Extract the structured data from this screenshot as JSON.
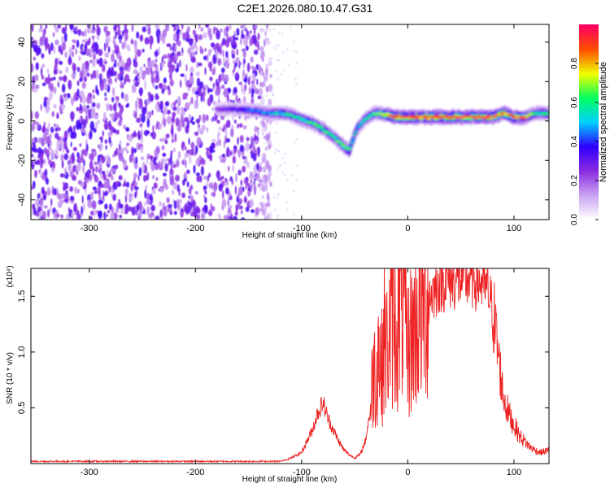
{
  "figure": {
    "title": "C2E1.2026.080.10.47.G31"
  },
  "chart_data": [
    {
      "type": "heatmap",
      "title": "C2E1.2026.080.10.47.G31",
      "xlabel": "Height of straight line (km)",
      "ylabel": "Frequency (Hz)",
      "xlim": [
        -355,
        133
      ],
      "ylim": [
        -50,
        49
      ],
      "x_ticks": [
        -300,
        -200,
        -100,
        0,
        100
      ],
      "y_ticks": [
        -40,
        -20,
        0,
        20,
        40
      ],
      "x_tick_labels": [
        "-300",
        "-200",
        "-100",
        "0",
        "100"
      ],
      "y_tick_labels": [
        "-40",
        "-20",
        "0",
        "20",
        "40"
      ],
      "colorbar": {
        "label": "Normalized spectral amplitude",
        "range": [
          0,
          1
        ],
        "ticks": [
          0.0,
          0.2,
          0.4,
          0.6,
          0.8
        ],
        "tick_labels": [
          "0.0",
          "0.2",
          "0.4",
          "0.6",
          "0.8"
        ],
        "colors": [
          "#ffffff",
          "#c9a0f2",
          "#8a2be2",
          "#2e00ff",
          "#00cfff",
          "#00ff60",
          "#f0ff00",
          "#ff5000",
          "#ff0060"
        ]
      },
      "noise_region": {
        "x_range": [
          -355,
          -135
        ],
        "mean_amplitude": 0.22
      },
      "ridge": {
        "description_values": "frequency (Hz) of the main spectral ridge vs height (km), with peak amplitude",
        "x": [
          -180,
          -160,
          -140,
          -130,
          -120,
          -110,
          -100,
          -90,
          -80,
          -70,
          -62,
          -55,
          -48,
          -40,
          -35,
          -30,
          -20,
          -10,
          0,
          20,
          40,
          60,
          80,
          90,
          100,
          110,
          120,
          133
        ],
        "y": [
          6,
          6,
          5,
          4,
          4,
          3,
          1,
          -1,
          -4,
          -8,
          -12,
          -15,
          -4,
          1,
          3,
          4,
          3,
          2,
          2,
          2,
          2,
          2,
          2,
          4,
          2,
          2,
          4,
          4
        ],
        "amplitude": [
          0.25,
          0.35,
          0.45,
          0.5,
          0.55,
          0.55,
          0.6,
          0.6,
          0.6,
          0.6,
          0.65,
          0.6,
          0.5,
          0.55,
          0.6,
          0.6,
          0.85,
          0.9,
          0.95,
          0.95,
          0.95,
          0.95,
          0.9,
          0.85,
          0.9,
          0.8,
          0.6,
          0.6
        ]
      }
    },
    {
      "type": "line",
      "xlabel": "Height of straight line (km)",
      "ylabel": "SNR (10 * v/v)",
      "y_multiplier": "(x10⁴)",
      "xlim": [
        -355,
        133
      ],
      "ylim": [
        0,
        1.75
      ],
      "x_ticks": [
        -300,
        -200,
        -100,
        0,
        100
      ],
      "y_ticks": [
        0.5,
        1.0,
        1.5
      ],
      "x_tick_labels": [
        "-300",
        "-200",
        "-100",
        "0",
        "100"
      ],
      "y_tick_labels": [
        "0.5",
        "1.0",
        "1.5"
      ],
      "series": [
        {
          "color": "#ee2222",
          "x": [
            -355,
            -300,
            -250,
            -200,
            -150,
            -120,
            -110,
            -100,
            -95,
            -90,
            -85,
            -80,
            -75,
            -70,
            -65,
            -60,
            -55,
            -50,
            -45,
            -40,
            -35,
            -32,
            -30,
            -28,
            -25,
            -22,
            -20,
            -15,
            -10,
            -5,
            0,
            5,
            10,
            15,
            20,
            25,
            30,
            40,
            50,
            60,
            70,
            75,
            80,
            85,
            90,
            95,
            100,
            105,
            110,
            115,
            120,
            125,
            133
          ],
          "y": [
            0.02,
            0.02,
            0.02,
            0.02,
            0.02,
            0.02,
            0.05,
            0.1,
            0.2,
            0.3,
            0.45,
            0.55,
            0.4,
            0.3,
            0.2,
            0.12,
            0.08,
            0.05,
            0.08,
            0.2,
            0.5,
            0.9,
            0.7,
            1.1,
            0.8,
            1.2,
            1.0,
            1.3,
            1.2,
            1.45,
            1.0,
            1.2,
            1.3,
            1.4,
            1.5,
            1.55,
            1.62,
            1.65,
            1.65,
            1.66,
            1.62,
            1.55,
            1.4,
            1.0,
            0.6,
            0.45,
            0.35,
            0.25,
            0.2,
            0.15,
            0.12,
            0.1,
            0.12
          ]
        }
      ]
    }
  ]
}
